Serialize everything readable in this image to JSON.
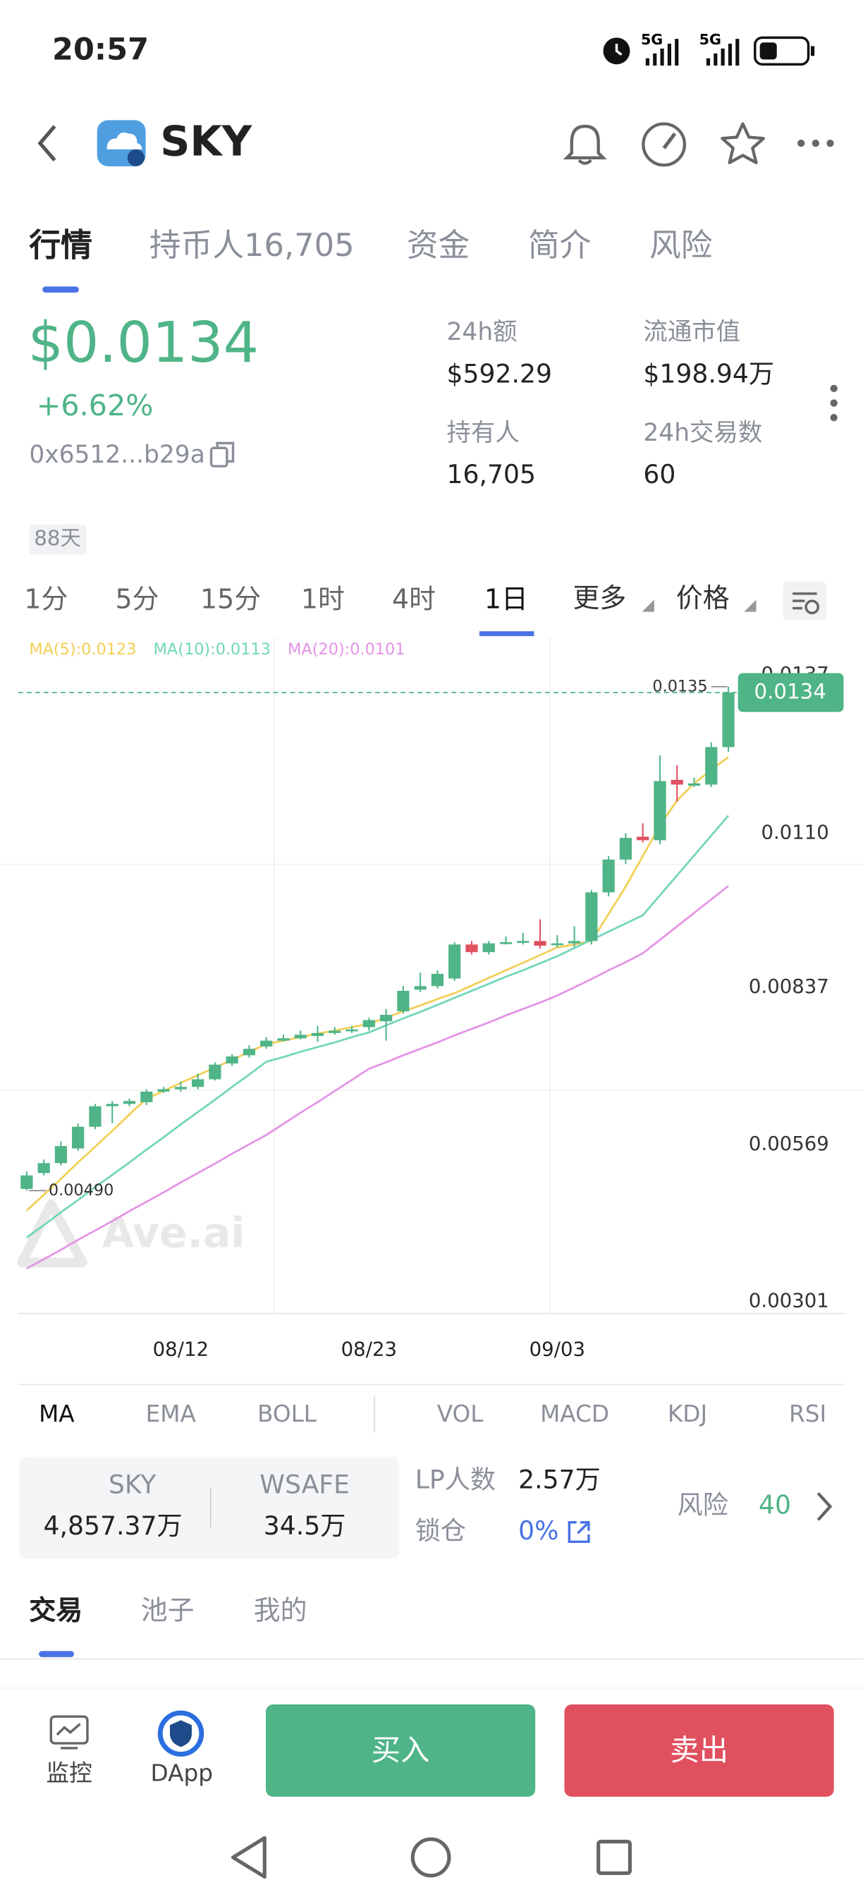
{
  "status_bar": {
    "time": "20:57",
    "signal_1": "5G",
    "signal_2": "5G"
  },
  "header": {
    "title": "SKY"
  },
  "tabs": [
    "行情",
    "持币人16,705",
    "资金",
    "简介",
    "风险"
  ],
  "price": "$0.0134",
  "change": "+6.62%",
  "address": "0x6512...b29a",
  "stats": [
    {
      "label": "24h额",
      "value": "$592.29"
    },
    {
      "label": "流通市值",
      "value": "$198.94万"
    },
    {
      "label": "持有人",
      "value": "16,705"
    },
    {
      "label": "24h交易数",
      "value": "60"
    }
  ],
  "age_badge": "88天",
  "intervals": [
    "1分",
    "5分",
    "15分",
    "1时",
    "4时",
    "1日",
    "更多",
    "价格"
  ],
  "watermark": "Ave.ai",
  "chart_data": {
    "type": "candlestick",
    "categories": [
      null,
      null,
      null,
      null,
      null,
      null,
      null,
      null,
      null,
      "08/12",
      null,
      null,
      null,
      null,
      null,
      null,
      null,
      null,
      null,
      null,
      "08/23",
      null,
      null,
      null,
      null,
      null,
      null,
      null,
      null,
      null,
      null,
      "09/03",
      null,
      null,
      null,
      null,
      null,
      null,
      null,
      null,
      null,
      null
    ],
    "open": [
      0.00493,
      0.0052,
      0.00537,
      0.00562,
      0.00599,
      0.00634,
      0.00638,
      0.00641,
      0.00659,
      0.00663,
      0.00667,
      0.0068,
      0.00707,
      0.00721,
      0.00736,
      0.00746,
      0.0075,
      0.00754,
      0.00759,
      0.00763,
      0.00769,
      0.00779,
      0.00796,
      0.00833,
      0.00839,
      0.00852,
      0.0091,
      0.00897,
      0.00912,
      0.00914,
      0.00916,
      0.0091,
      0.00912,
      0.00916,
      0.00999,
      0.01055,
      0.01094,
      0.01088,
      0.01191,
      0.01181,
      0.01183,
      0.01247
    ],
    "high": [
      0.00523,
      0.00543,
      0.00574,
      0.00605,
      0.00638,
      0.00643,
      0.00647,
      0.00663,
      0.00667,
      0.00676,
      0.0069,
      0.00709,
      0.00723,
      0.00738,
      0.00752,
      0.00756,
      0.00763,
      0.00771,
      0.00769,
      0.00771,
      0.00785,
      0.008,
      0.00839,
      0.00862,
      0.00866,
      0.00914,
      0.00916,
      0.00916,
      0.00924,
      0.0093,
      0.00953,
      0.00926,
      0.00941,
      0.01003,
      0.01061,
      0.011,
      0.01117,
      0.01233,
      0.01216,
      0.01195,
      0.01255,
      0.0135
    ],
    "low": [
      0.0049,
      0.00516,
      0.00533,
      0.00558,
      0.00595,
      0.00605,
      0.00634,
      0.00636,
      0.00657,
      0.00659,
      0.00663,
      0.00678,
      0.00703,
      0.00717,
      0.00732,
      0.00744,
      0.00748,
      0.00744,
      0.00756,
      0.00759,
      0.00763,
      0.00746,
      0.00792,
      0.00829,
      0.00835,
      0.00848,
      0.00893,
      0.00893,
      0.0091,
      0.0091,
      0.00903,
      0.00905,
      0.00905,
      0.0091,
      0.00992,
      0.01048,
      0.01084,
      0.01081,
      0.01154,
      0.01179,
      0.01179,
      0.01239
    ],
    "close": [
      0.00516,
      0.00537,
      0.00566,
      0.00599,
      0.00634,
      0.00638,
      0.00643,
      0.00659,
      0.00663,
      0.00667,
      0.0068,
      0.00705,
      0.00719,
      0.00732,
      0.00746,
      0.0075,
      0.00756,
      0.00759,
      0.00763,
      0.00765,
      0.00781,
      0.0079,
      0.00831,
      0.00839,
      0.0086,
      0.0091,
      0.00897,
      0.00912,
      0.00914,
      0.00916,
      0.00908,
      0.00912,
      0.00916,
      0.00999,
      0.01055,
      0.01092,
      0.01088,
      0.01189,
      0.01183,
      0.01185,
      0.01247,
      0.0134
    ],
    "up_color": "#4fb487",
    "down_color": "#e0505f",
    "series": [
      {
        "name": "MA(5):0.0123",
        "color": "#f2cf55",
        "values": [
          0.00456,
          0.00483,
          0.0051,
          0.00538,
          0.00565,
          0.00592,
          0.0062,
          0.00647,
          0.0066,
          0.00674,
          0.00687,
          0.007,
          0.00713,
          0.00727,
          0.0074,
          0.00746,
          0.00752,
          0.00758,
          0.00763,
          0.00769,
          0.00775,
          0.00785,
          0.00796,
          0.00806,
          0.00817,
          0.00827,
          0.0084,
          0.00853,
          0.00866,
          0.00879,
          0.00892,
          0.00905,
          0.0091,
          0.00916,
          0.00962,
          0.01009,
          0.01061,
          0.01113,
          0.01156,
          0.01185,
          0.01208,
          0.0123
        ]
      },
      {
        "name": "MA(10):0.0113",
        "color": "#72d6bb",
        "values": [
          0.0041,
          0.00431,
          0.00453,
          0.00474,
          0.00496,
          0.00517,
          0.00538,
          0.0056,
          0.00581,
          0.00603,
          0.00624,
          0.00645,
          0.00667,
          0.00688,
          0.0071,
          0.00718,
          0.00727,
          0.00735,
          0.00743,
          0.00752,
          0.0076,
          0.00772,
          0.00784,
          0.00795,
          0.00807,
          0.00819,
          0.00831,
          0.00843,
          0.00855,
          0.00866,
          0.00878,
          0.0089,
          0.00904,
          0.00918,
          0.00932,
          0.00946,
          0.0096,
          0.00994,
          0.01028,
          0.01062,
          0.01096,
          0.0113
        ]
      },
      {
        "name": "MA(20):0.0101",
        "color": "#e394e6",
        "values": [
          0.00357,
          0.00373,
          0.00389,
          0.00406,
          0.00422,
          0.00438,
          0.00455,
          0.00471,
          0.00487,
          0.00504,
          0.0052,
          0.00536,
          0.00553,
          0.00569,
          0.00585,
          0.00604,
          0.00623,
          0.00641,
          0.0066,
          0.00679,
          0.00698,
          0.00709,
          0.00721,
          0.00732,
          0.00743,
          0.00755,
          0.00766,
          0.00777,
          0.00789,
          0.008,
          0.00811,
          0.00823,
          0.00837,
          0.00851,
          0.00866,
          0.0088,
          0.00895,
          0.00918,
          0.00941,
          0.00964,
          0.00987,
          0.0101
        ]
      }
    ],
    "ylim": [
      0.00301,
      0.0137
    ],
    "yticks": [
      0.0137,
      {
        "value": 0.011,
        "label": "0.0110"
      },
      0.00837,
      0.00569,
      0.00301
    ],
    "last_price": 0.0134,
    "last_price_color": "#4fb487",
    "high_marker": 0.0135,
    "low_marker": {
      "value": 0.0049,
      "label": "0.00490"
    }
  },
  "indicators": [
    "MA",
    "EMA",
    "BOLL",
    "VOL",
    "MACD",
    "KDJ",
    "RSI"
  ],
  "pool": {
    "token_a": {
      "symbol": "SKY",
      "amount": "4,857.37万"
    },
    "token_b": {
      "symbol": "WSAFE",
      "amount": "34.5万"
    },
    "lp_label": "LP人数",
    "lp_value": "2.57万",
    "lock_label": "锁仓",
    "lock_value": "0%",
    "risk_label": "风险",
    "risk_value": "40"
  },
  "bottom_tabs": [
    "交易",
    "池子",
    "我的"
  ],
  "nav": {
    "monitor": "监控",
    "dapp": "DApp",
    "buy": "买入",
    "sell": "卖出"
  }
}
